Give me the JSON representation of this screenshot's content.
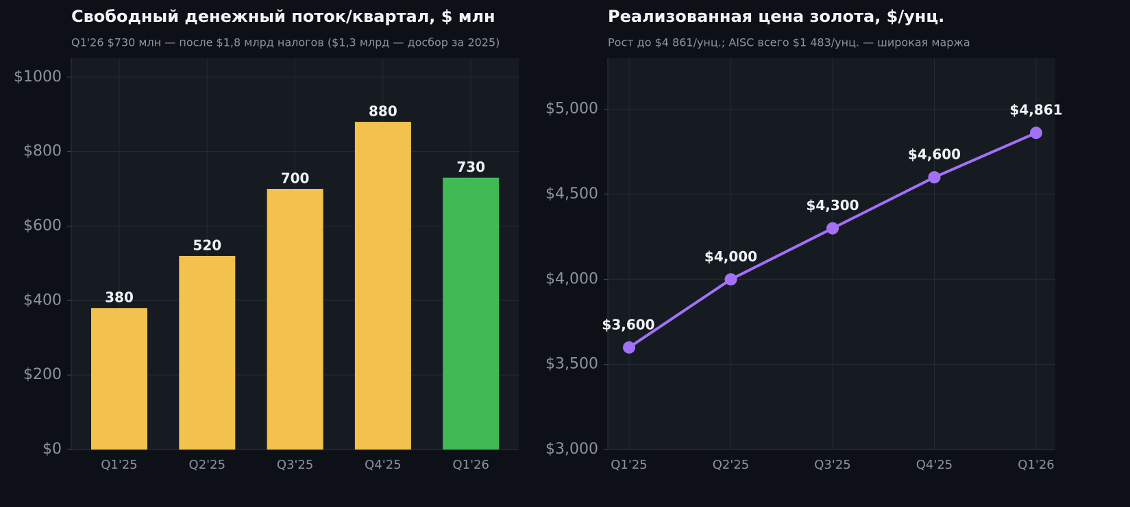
{
  "chart_data": [
    {
      "type": "bar",
      "title": "Свободный денежный поток/квартал, $ млн",
      "subtitle": "Q1'26 $730 млн — после $1,8 млрд налогов ($1,3 млрд — досбор за 2025)",
      "categories": [
        "Q1'25",
        "Q2'25",
        "Q3'25",
        "Q4'25",
        "Q1'26"
      ],
      "values": [
        380,
        520,
        700,
        880,
        730
      ],
      "colors": [
        "#f2c14e",
        "#f2c14e",
        "#f2c14e",
        "#f2c14e",
        "#3fba54"
      ],
      "ylim": [
        0,
        1051
      ],
      "yticks": [
        {
          "value": 0,
          "label": "$0"
        },
        {
          "value": 200,
          "label": "$200"
        },
        {
          "value": 400,
          "label": "$400"
        },
        {
          "value": 600,
          "label": "$600"
        },
        {
          "value": 800,
          "label": "$800"
        },
        {
          "value": 1000,
          "label": "$1000"
        }
      ],
      "grid": true
    },
    {
      "type": "line",
      "title": "Реализованная цена золота, $/унц.",
      "subtitle": "Рост до $4 861/унц.; AISC всего $1 483/унц. — широкая маржа",
      "categories": [
        "Q1'25",
        "Q2'25",
        "Q3'25",
        "Q4'25",
        "Q1'26"
      ],
      "values": [
        3600,
        4000,
        4300,
        4600,
        4861
      ],
      "value_labels": [
        "$3,600",
        "$4,000",
        "$4,300",
        "$4,600",
        "$4,861"
      ],
      "color": "#a371f7",
      "ylim": [
        3000,
        5300
      ],
      "yticks": [
        {
          "value": 3000,
          "label": "$3,000"
        },
        {
          "value": 3500,
          "label": "$3,500"
        },
        {
          "value": 4000,
          "label": "$4,000"
        },
        {
          "value": 4500,
          "label": "$4,500"
        },
        {
          "value": 5000,
          "label": "$5,000"
        }
      ],
      "grid": true
    }
  ]
}
